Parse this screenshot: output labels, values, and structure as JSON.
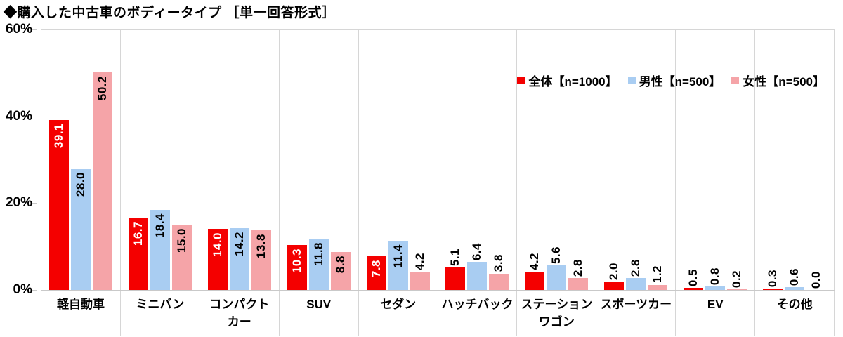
{
  "title": "◆購入した中古車のボディータイプ ［単一回答形式］",
  "colors": {
    "total": "#f40000",
    "male": "#a9cdf2",
    "female": "#f5a4a8",
    "grid": "#d6d6d6",
    "text": "#000000",
    "inside_label_on_total": "#ffffff"
  },
  "chart_data": {
    "type": "bar",
    "title": "購入した中古車のボディータイプ［単一回答形式］",
    "categories": [
      "軽自動車",
      "ミニバン",
      "コンパクト\nカー",
      "SUV",
      "セダン",
      "ハッチバック",
      "ステーション\nワゴン",
      "スポーツカー",
      "EV",
      "その他"
    ],
    "series": [
      {
        "name": "全体【n=1000】",
        "key": "total",
        "color": "#f40000",
        "values": [
          39.1,
          16.7,
          14.0,
          10.3,
          7.8,
          5.1,
          4.2,
          2.0,
          0.5,
          0.3
        ]
      },
      {
        "name": "男性【n=500】",
        "key": "male",
        "color": "#a9cdf2",
        "values": [
          28.0,
          18.4,
          14.2,
          11.8,
          11.4,
          6.4,
          5.6,
          2.8,
          0.8,
          0.6
        ]
      },
      {
        "name": "女性【n=500】",
        "key": "female",
        "color": "#f5a4a8",
        "values": [
          50.2,
          15.0,
          13.8,
          8.8,
          4.2,
          3.8,
          2.8,
          1.2,
          0.2,
          0.0
        ]
      }
    ],
    "xlabel": "",
    "ylabel": "%",
    "ylim": [
      0,
      60
    ],
    "y_ticks_top_down": [
      "60%",
      "40%",
      "20%",
      "0%"
    ],
    "grid": "vertical category separators only, no horizontal gridlines",
    "legend_position": "top-right inside plot",
    "value_labels": "rotated 90°, one decimal; white inside red bars, black otherwise; outside above bar when value is small"
  }
}
